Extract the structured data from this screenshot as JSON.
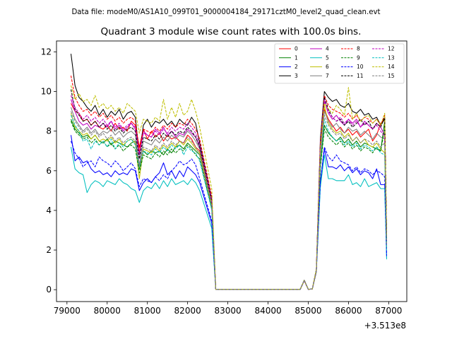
{
  "chart_data": {
    "type": "line",
    "suptitle": "Data file: modeM0/AS1A10_099T01_9000004184_29171cztM0_level2_quad_clean.evt",
    "title": "Quadrant 3 module wise count rates with 100.0s bins.",
    "xlabel": "",
    "ylabel": "",
    "x_offset_label": "+3.513e8",
    "xlim": [
      78740,
      87450
    ],
    "ylim": [
      -0.6,
      12.55
    ],
    "x_ticks": [
      79000,
      80000,
      81000,
      82000,
      83000,
      84000,
      85000,
      86000,
      87000
    ],
    "x_tick_labels": [
      "79000",
      "80000",
      "81000",
      "82000",
      "83000",
      "84000",
      "85000",
      "86000",
      "87000"
    ],
    "y_ticks": [
      0,
      2,
      4,
      6,
      8,
      10,
      12
    ],
    "y_tick_labels": [
      "0",
      "2",
      "4",
      "6",
      "8",
      "10",
      "12"
    ],
    "x_start": 79100,
    "x_step": 100,
    "gap_end": 83100,
    "resume": 85400,
    "legend_position": "top-right",
    "series": [
      {
        "name": "0",
        "color": "#ff0000",
        "dash": "solid",
        "head": [
          9.4,
          9.0,
          8.9,
          8.5,
          8.6,
          8.3,
          8.5,
          8.2,
          8.1,
          8.3,
          8.0,
          8.4,
          8.1,
          8.2,
          8.0,
          8.5,
          8.3,
          7.2,
          8.1,
          7.6,
          8.0,
          7.7,
          7.9,
          7.5,
          7.8,
          7.6,
          7.7,
          7.5,
          7.4,
          7.8,
          7.6,
          7.2,
          7.0
        ],
        "tail": [
          9.1,
          8.6,
          8.3,
          8.0,
          8.2,
          7.9,
          8.1,
          7.8,
          8.0,
          7.7,
          7.9,
          8.1,
          7.5,
          7.8,
          8.4,
          8.6
        ]
      },
      {
        "name": "1",
        "color": "#008000",
        "dash": "solid",
        "head": [
          8.6,
          8.1,
          7.9,
          7.7,
          7.8,
          7.6,
          7.8,
          7.5,
          7.4,
          7.6,
          7.3,
          7.5,
          7.4,
          7.3,
          7.2,
          7.4,
          7.5,
          6.1,
          7.0,
          6.8,
          7.0,
          6.9,
          7.0,
          6.8,
          7.1,
          6.9,
          7.2,
          7.3,
          7.1,
          7.4,
          7.2,
          7.0,
          6.8
        ],
        "tail": [
          8.3,
          7.9,
          7.7,
          7.5,
          7.7,
          7.4,
          7.6,
          7.3,
          7.5,
          7.2,
          7.4,
          7.3,
          7.2,
          7.1,
          7.0,
          8.5
        ]
      },
      {
        "name": "2",
        "color": "#0000ff",
        "dash": "solid",
        "head": [
          7.8,
          6.5,
          6.7,
          6.4,
          6.5,
          6.1,
          5.9,
          6.0,
          5.8,
          5.9,
          5.7,
          6.0,
          5.8,
          5.9,
          5.8,
          6.1,
          6.0,
          5.0,
          5.4,
          5.6,
          5.4,
          5.7,
          5.9,
          6.4,
          5.8,
          6.0,
          5.6,
          6.0,
          5.7,
          6.2,
          6.0,
          5.8,
          5.4
        ],
        "tail": [
          7.1,
          6.2,
          6.2,
          6.1,
          6.3,
          6.0,
          6.2,
          5.9,
          6.1,
          5.8,
          6.0,
          5.9,
          5.6,
          6.1,
          5.3,
          5.3
        ]
      },
      {
        "name": "3",
        "color": "#000000",
        "dash": "solid",
        "head": [
          11.9,
          10.3,
          9.7,
          9.5,
          9.2,
          9.0,
          9.3,
          8.8,
          9.1,
          8.7,
          9.0,
          8.8,
          9.1,
          8.6,
          8.9,
          9.0,
          8.7,
          6.8,
          8.3,
          8.6,
          8.2,
          8.5,
          8.4,
          8.6,
          8.3,
          8.5,
          8.2,
          8.6,
          8.4,
          8.3,
          8.7,
          8.4,
          7.4
        ],
        "tail": [
          10.0,
          9.7,
          9.5,
          9.6,
          9.3,
          9.2,
          9.4,
          9.0,
          8.9,
          9.1,
          8.8,
          8.9,
          8.6,
          8.7,
          8.3,
          8.6
        ]
      },
      {
        "name": "4",
        "color": "#bf00bf",
        "dash": "solid",
        "head": [
          9.6,
          9.0,
          8.5,
          8.3,
          8.4,
          8.1,
          8.3,
          8.2,
          8.4,
          8.2,
          8.5,
          8.1,
          8.3,
          8.0,
          8.2,
          8.4,
          8.1,
          6.9,
          8.0,
          7.8,
          7.7,
          8.1,
          7.9,
          8.2,
          7.8,
          8.0,
          7.7,
          7.9,
          7.8,
          8.1,
          7.9,
          7.7,
          7.2
        ],
        "tail": [
          9.5,
          8.9,
          8.6,
          8.8,
          8.5,
          8.3,
          8.6,
          8.4,
          8.6,
          8.2,
          8.5,
          8.3,
          8.1,
          8.4,
          8.2,
          7.8
        ]
      },
      {
        "name": "5",
        "color": "#00bfbf",
        "dash": "solid",
        "head": [
          7.2,
          6.1,
          5.9,
          5.8,
          4.9,
          5.3,
          5.5,
          5.4,
          5.2,
          5.5,
          5.4,
          5.3,
          5.6,
          5.4,
          5.3,
          5.1,
          5.0,
          4.4,
          5.0,
          5.2,
          5.1,
          5.4,
          5.1,
          5.5,
          5.2,
          5.6,
          5.3,
          5.4,
          5.5,
          5.3,
          5.6,
          5.4,
          5.0
        ],
        "tail": [
          6.8,
          5.6,
          5.6,
          5.5,
          5.5,
          5.5,
          5.8,
          5.3,
          5.4,
          5.2,
          5.6,
          5.2,
          5.3,
          5.4,
          5.1,
          5.1
        ]
      },
      {
        "name": "6",
        "color": "#bfbf00",
        "dash": "solid",
        "head": [
          8.9,
          8.2,
          8.0,
          7.8,
          7.9,
          7.6,
          7.8,
          7.5,
          7.6,
          7.5,
          7.7,
          7.4,
          7.6,
          7.3,
          7.5,
          7.6,
          7.4,
          5.6,
          7.1,
          7.0,
          6.9,
          7.2,
          7.0,
          7.3,
          7.1,
          7.4,
          7.2,
          7.5,
          7.3,
          7.6,
          7.4,
          7.1,
          6.9
        ],
        "tail": [
          9.3,
          8.4,
          8.1,
          7.9,
          8.0,
          7.7,
          7.9,
          7.5,
          7.7,
          7.4,
          7.6,
          7.3,
          7.2,
          7.4,
          7.1,
          6.9
        ]
      },
      {
        "name": "7",
        "color": "#808080",
        "dash": "solid",
        "head": [
          9.2,
          8.6,
          8.3,
          8.0,
          8.2,
          7.9,
          8.1,
          7.8,
          8.0,
          7.9,
          8.1,
          7.8,
          8.0,
          7.7,
          7.9,
          8.0,
          7.8,
          6.3,
          7.5,
          7.4,
          7.3,
          7.6,
          7.4,
          7.7,
          7.5,
          7.8,
          7.6,
          7.8,
          7.7,
          8.0,
          7.8,
          7.5,
          7.1
        ],
        "tail": [
          9.0,
          8.5,
          8.2,
          8.4,
          8.1,
          7.9,
          8.2,
          8.0,
          8.1,
          7.8,
          8.0,
          7.8,
          7.6,
          7.9,
          7.7,
          7.6
        ]
      },
      {
        "name": "8",
        "color": "#ff0000",
        "dash": "dashed",
        "head": [
          10.8,
          9.7,
          9.3,
          9.0,
          9.1,
          8.8,
          9.0,
          8.7,
          8.9,
          8.6,
          8.8,
          8.5,
          8.7,
          8.4,
          8.6,
          8.7,
          8.5,
          7.0,
          8.1,
          8.0,
          7.9,
          8.2,
          8.0,
          8.3,
          8.1,
          8.4,
          8.2,
          8.4,
          8.3,
          8.6,
          8.4,
          8.1,
          7.6
        ],
        "tail": [
          9.8,
          9.3,
          9.1,
          9.0,
          8.9,
          8.7,
          8.9,
          8.6,
          8.8,
          8.5,
          8.7,
          8.6,
          8.4,
          8.6,
          8.3,
          8.8
        ]
      },
      {
        "name": "9",
        "color": "#008000",
        "dash": "dashed",
        "head": [
          8.5,
          8.0,
          7.8,
          7.6,
          7.7,
          7.4,
          7.6,
          7.3,
          7.5,
          7.2,
          7.4,
          7.1,
          7.3,
          7.0,
          7.2,
          7.3,
          7.1,
          5.9,
          6.8,
          6.7,
          6.6,
          6.9,
          6.7,
          7.0,
          6.8,
          7.1,
          6.9,
          7.1,
          7.0,
          7.3,
          7.1,
          6.8,
          6.6
        ],
        "tail": [
          8.1,
          7.7,
          7.5,
          7.3,
          7.5,
          7.2,
          7.4,
          7.1,
          7.3,
          7.0,
          7.2,
          7.1,
          6.9,
          7.2,
          7.0,
          8.1
        ]
      },
      {
        "name": "10",
        "color": "#0000ff",
        "dash": "dashed",
        "head": [
          7.5,
          6.9,
          6.6,
          6.2,
          6.4,
          6.5,
          6.2,
          6.7,
          6.5,
          6.4,
          6.2,
          6.5,
          6.3,
          6.0,
          6.2,
          6.4,
          6.1,
          5.2,
          5.6,
          5.5,
          5.4,
          5.7,
          5.5,
          5.8,
          5.6,
          6.0,
          6.2,
          6.5,
          6.3,
          6.4,
          6.6,
          6.3,
          5.6
        ],
        "tail": [
          7.2,
          6.7,
          6.5,
          6.8,
          6.5,
          6.4,
          6.3,
          6.0,
          6.2,
          5.9,
          6.1,
          6.0,
          5.8,
          6.0,
          5.9,
          5.7
        ]
      },
      {
        "name": "11",
        "color": "#000000",
        "dash": "dashed",
        "head": [
          10.1,
          9.1,
          8.8,
          8.5,
          8.6,
          8.3,
          8.5,
          8.2,
          8.4,
          8.1,
          8.3,
          8.0,
          8.2,
          7.9,
          8.1,
          8.2,
          8.0,
          6.6,
          7.7,
          7.6,
          7.5,
          7.8,
          7.6,
          7.9,
          7.7,
          8.0,
          7.8,
          8.0,
          7.9,
          8.2,
          8.0,
          7.7,
          7.2
        ],
        "tail": [
          9.7,
          9.1,
          8.7,
          8.5,
          8.6,
          8.3,
          8.5,
          8.2,
          8.4,
          8.6,
          8.3,
          8.5,
          8.1,
          8.4,
          8.2,
          8.7
        ]
      },
      {
        "name": "12",
        "color": "#bf00bf",
        "dash": "dashed",
        "head": [
          9.8,
          9.2,
          8.9,
          8.6,
          8.8,
          8.5,
          8.7,
          8.4,
          8.6,
          8.3,
          8.5,
          8.2,
          8.4,
          8.1,
          8.3,
          8.4,
          8.2,
          6.8,
          7.9,
          7.8,
          7.7,
          8.0,
          7.8,
          8.1,
          7.9,
          8.2,
          8.0,
          8.2,
          8.1,
          8.4,
          8.2,
          7.9,
          7.3
        ],
        "tail": [
          9.6,
          9.0,
          8.7,
          8.5,
          8.7,
          8.4,
          8.6,
          8.3,
          8.5,
          8.2,
          8.4,
          8.3,
          8.1,
          8.3,
          8.0,
          7.7
        ]
      },
      {
        "name": "13",
        "color": "#00bfbf",
        "dash": "dashed",
        "head": [
          8.8,
          8.3,
          8.0,
          7.5,
          7.6,
          7.1,
          7.5,
          7.3,
          7.5,
          7.2,
          7.6,
          7.1,
          7.4,
          7.2,
          7.5,
          7.6,
          7.3,
          6.2,
          7.0,
          6.9,
          6.8,
          7.1,
          6.9,
          7.2,
          7.0,
          7.3,
          7.1,
          7.3,
          6.8,
          7.2,
          7.0,
          6.9,
          6.5
        ],
        "tail": [
          8.6,
          8.0,
          7.7,
          7.5,
          7.6,
          7.3,
          7.5,
          7.2,
          7.4,
          7.1,
          7.3,
          7.2,
          7.0,
          7.2,
          6.9,
          6.8
        ]
      },
      {
        "name": "14",
        "color": "#bfbf00",
        "dash": "dashed",
        "head": [
          10.3,
          9.6,
          9.9,
          9.5,
          9.6,
          9.3,
          9.8,
          9.2,
          9.4,
          9.1,
          9.3,
          9.0,
          9.2,
          8.9,
          9.4,
          9.2,
          9.0,
          7.9,
          8.6,
          8.5,
          8.4,
          8.7,
          8.5,
          9.6,
          8.6,
          9.2,
          8.7,
          9.4,
          8.8,
          9.0,
          9.6,
          9.0,
          8.2
        ],
        "tail": [
          9.4,
          9.1,
          8.9,
          9.3,
          9.1,
          8.8,
          10.2,
          8.6,
          8.9,
          8.5,
          8.7,
          8.8,
          8.4,
          8.6,
          8.3,
          8.9
        ]
      },
      {
        "name": "15",
        "color": "#808080",
        "dash": "dashed",
        "head": [
          9.0,
          8.5,
          8.2,
          7.9,
          8.1,
          7.8,
          8.0,
          7.7,
          7.9,
          7.6,
          7.8,
          7.5,
          7.7,
          7.4,
          7.6,
          7.7,
          7.5,
          6.2,
          7.2,
          7.1,
          7.0,
          7.3,
          7.1,
          7.4,
          7.2,
          7.5,
          7.3,
          7.5,
          7.4,
          7.7,
          7.5,
          7.2,
          6.8
        ],
        "tail": [
          8.8,
          8.3,
          8.0,
          7.8,
          7.9,
          7.6,
          7.8,
          7.5,
          7.7,
          7.4,
          7.6,
          7.5,
          7.3,
          7.5,
          7.2,
          7.4
        ]
      }
    ]
  }
}
